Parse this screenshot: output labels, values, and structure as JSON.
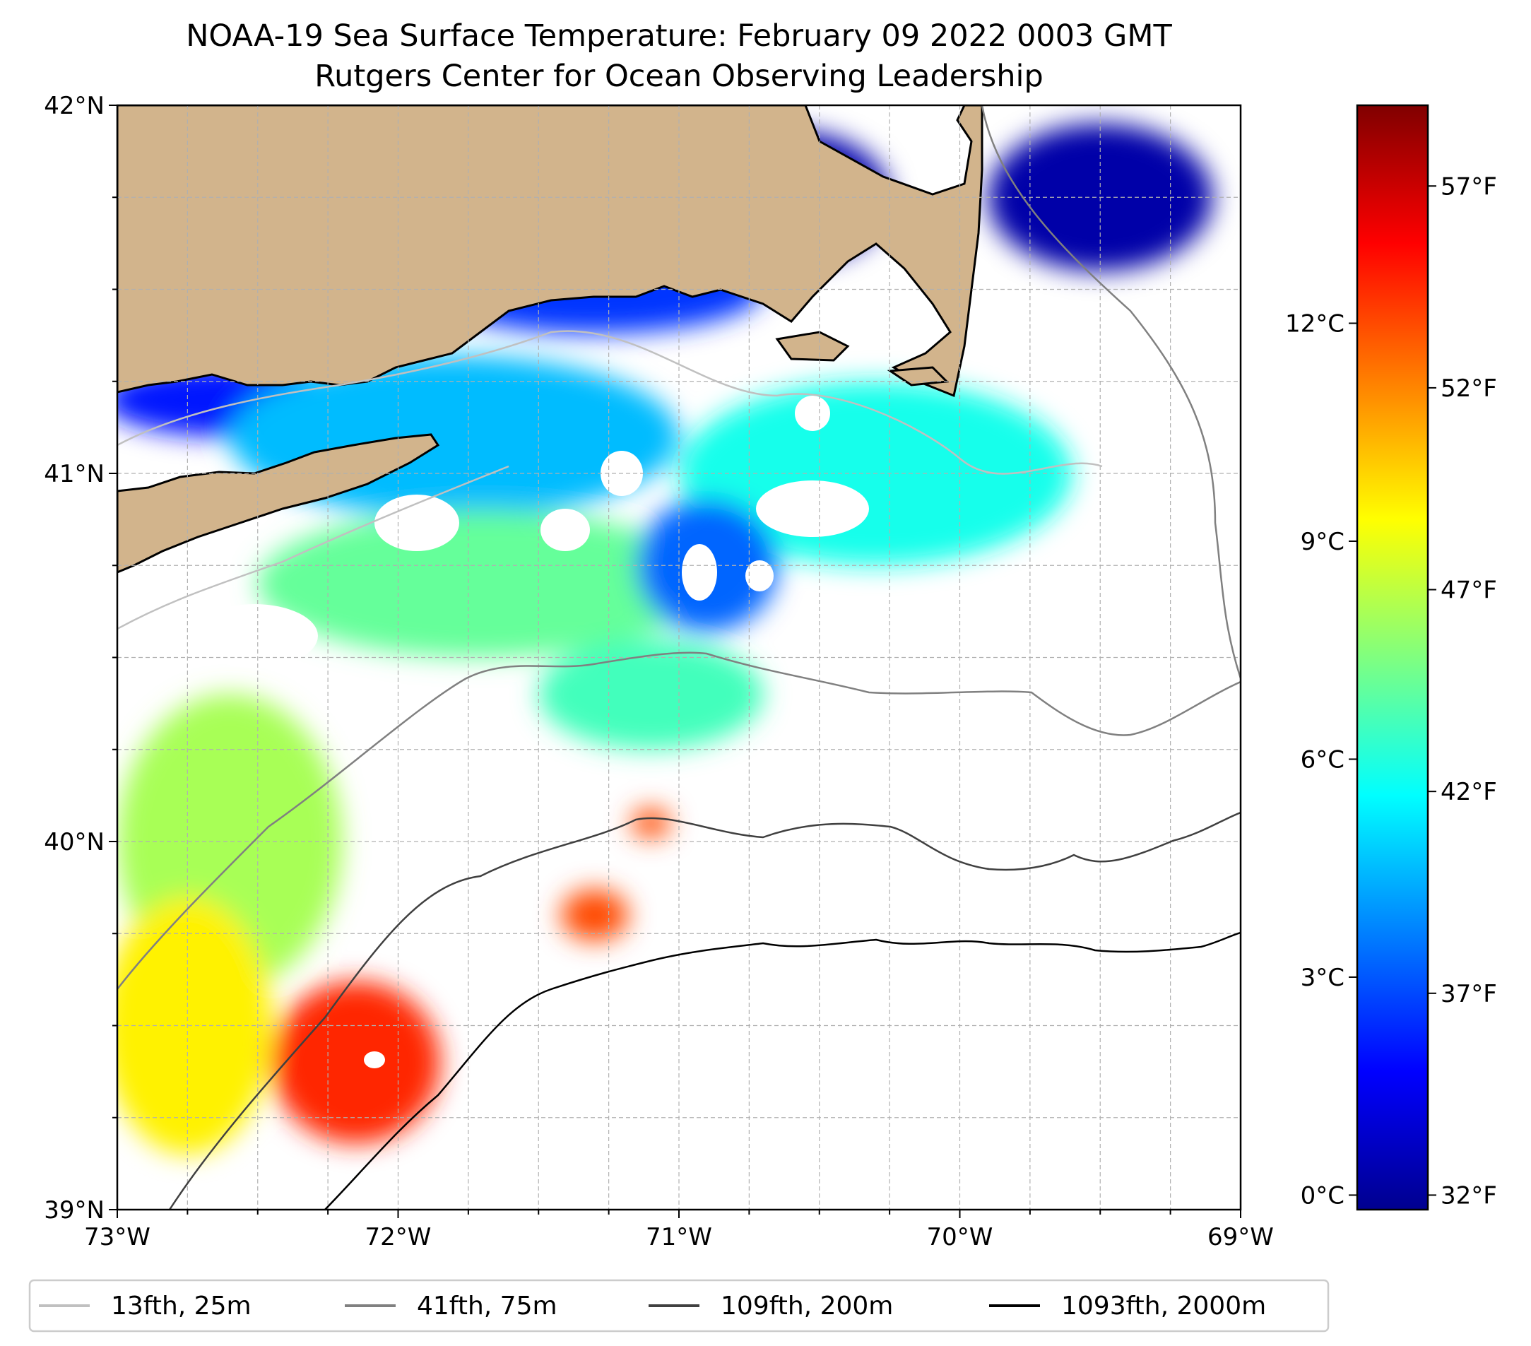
{
  "title": {
    "line1": "NOAA-19 Sea Surface Temperature: February 09 2022 0003 GMT",
    "line2": "Rutgers Center for Ocean Observing Leadership"
  },
  "map": {
    "lat_range": [
      39,
      42
    ],
    "lon_range": [
      -73,
      -69
    ],
    "lat_ticks": [
      {
        "value": 42,
        "label": "42°N"
      },
      {
        "value": 41,
        "label": "41°N"
      },
      {
        "value": 40,
        "label": "40°N"
      },
      {
        "value": 39,
        "label": "39°N"
      }
    ],
    "lon_ticks": [
      {
        "value": -73,
        "label": "73°W"
      },
      {
        "value": -72,
        "label": "72°W"
      },
      {
        "value": -71,
        "label": "71°W"
      },
      {
        "value": -70,
        "label": "70°W"
      },
      {
        "value": -69,
        "label": "69°W"
      }
    ],
    "gridlines": true,
    "land_color": "#d2b48c",
    "sst_regions": [
      {
        "temp_c": 0.5,
        "lon": -70.6,
        "lat": 41.75,
        "rlon": 0.35,
        "rlat": 0.18
      },
      {
        "temp_c": 0.4,
        "lon": -69.5,
        "lat": 41.75,
        "rlon": 0.4,
        "rlat": 0.2
      },
      {
        "temp_c": 2.5,
        "lon": -71.3,
        "lat": 41.5,
        "rlon": 0.6,
        "rlat": 0.12
      },
      {
        "temp_c": 2.0,
        "lon": -72.6,
        "lat": 41.2,
        "rlon": 0.45,
        "rlat": 0.1
      },
      {
        "temp_c": 4.5,
        "lon": -71.8,
        "lat": 41.1,
        "rlon": 0.8,
        "rlat": 0.22
      },
      {
        "temp_c": 5.8,
        "lon": -70.3,
        "lat": 41.0,
        "rlon": 0.7,
        "rlat": 0.25
      },
      {
        "temp_c": 7.0,
        "lon": -71.7,
        "lat": 40.7,
        "rlon": 0.8,
        "rlat": 0.2
      },
      {
        "temp_c": 3.2,
        "lon": -70.9,
        "lat": 40.75,
        "rlon": 0.25,
        "rlat": 0.18
      },
      {
        "temp_c": 6.5,
        "lon": -71.1,
        "lat": 40.4,
        "rlon": 0.4,
        "rlat": 0.15
      },
      {
        "temp_c": 8.0,
        "lon": -72.6,
        "lat": 40.0,
        "rlon": 0.4,
        "rlat": 0.4
      },
      {
        "temp_c": 9.5,
        "lon": -72.75,
        "lat": 39.5,
        "rlon": 0.3,
        "rlat": 0.35
      },
      {
        "temp_c": 12.5,
        "lon": -72.15,
        "lat": 39.4,
        "rlon": 0.3,
        "rlat": 0.22
      },
      {
        "temp_c": 12.0,
        "lon": -71.3,
        "lat": 39.8,
        "rlon": 0.12,
        "rlat": 0.07
      },
      {
        "temp_c": 12.0,
        "lon": -71.1,
        "lat": 40.05,
        "rlon": 0.07,
        "rlat": 0.04
      }
    ]
  },
  "colorbar": {
    "colormap": "jet",
    "range_c": [
      -0.2,
      15.0
    ],
    "celsius_ticks": [
      {
        "value": 0,
        "label": "0°C"
      },
      {
        "value": 3,
        "label": "3°C"
      },
      {
        "value": 6,
        "label": "6°C"
      },
      {
        "value": 9,
        "label": "9°C"
      },
      {
        "value": 12,
        "label": "12°C"
      }
    ],
    "fahrenheit_ticks": [
      {
        "value": 32,
        "label": "32°F"
      },
      {
        "value": 37,
        "label": "37°F"
      },
      {
        "value": 42,
        "label": "42°F"
      },
      {
        "value": 47,
        "label": "47°F"
      },
      {
        "value": 52,
        "label": "52°F"
      },
      {
        "value": 57,
        "label": "57°F"
      }
    ]
  },
  "legend": {
    "location": "bottom",
    "items": [
      {
        "label": "13fth, 25m",
        "color": "#c0c0c0"
      },
      {
        "label": "41fth, 75m",
        "color": "#808080"
      },
      {
        "label": "109fth, 200m",
        "color": "#404040"
      },
      {
        "label": "1093fth, 2000m",
        "color": "#000000"
      }
    ]
  }
}
